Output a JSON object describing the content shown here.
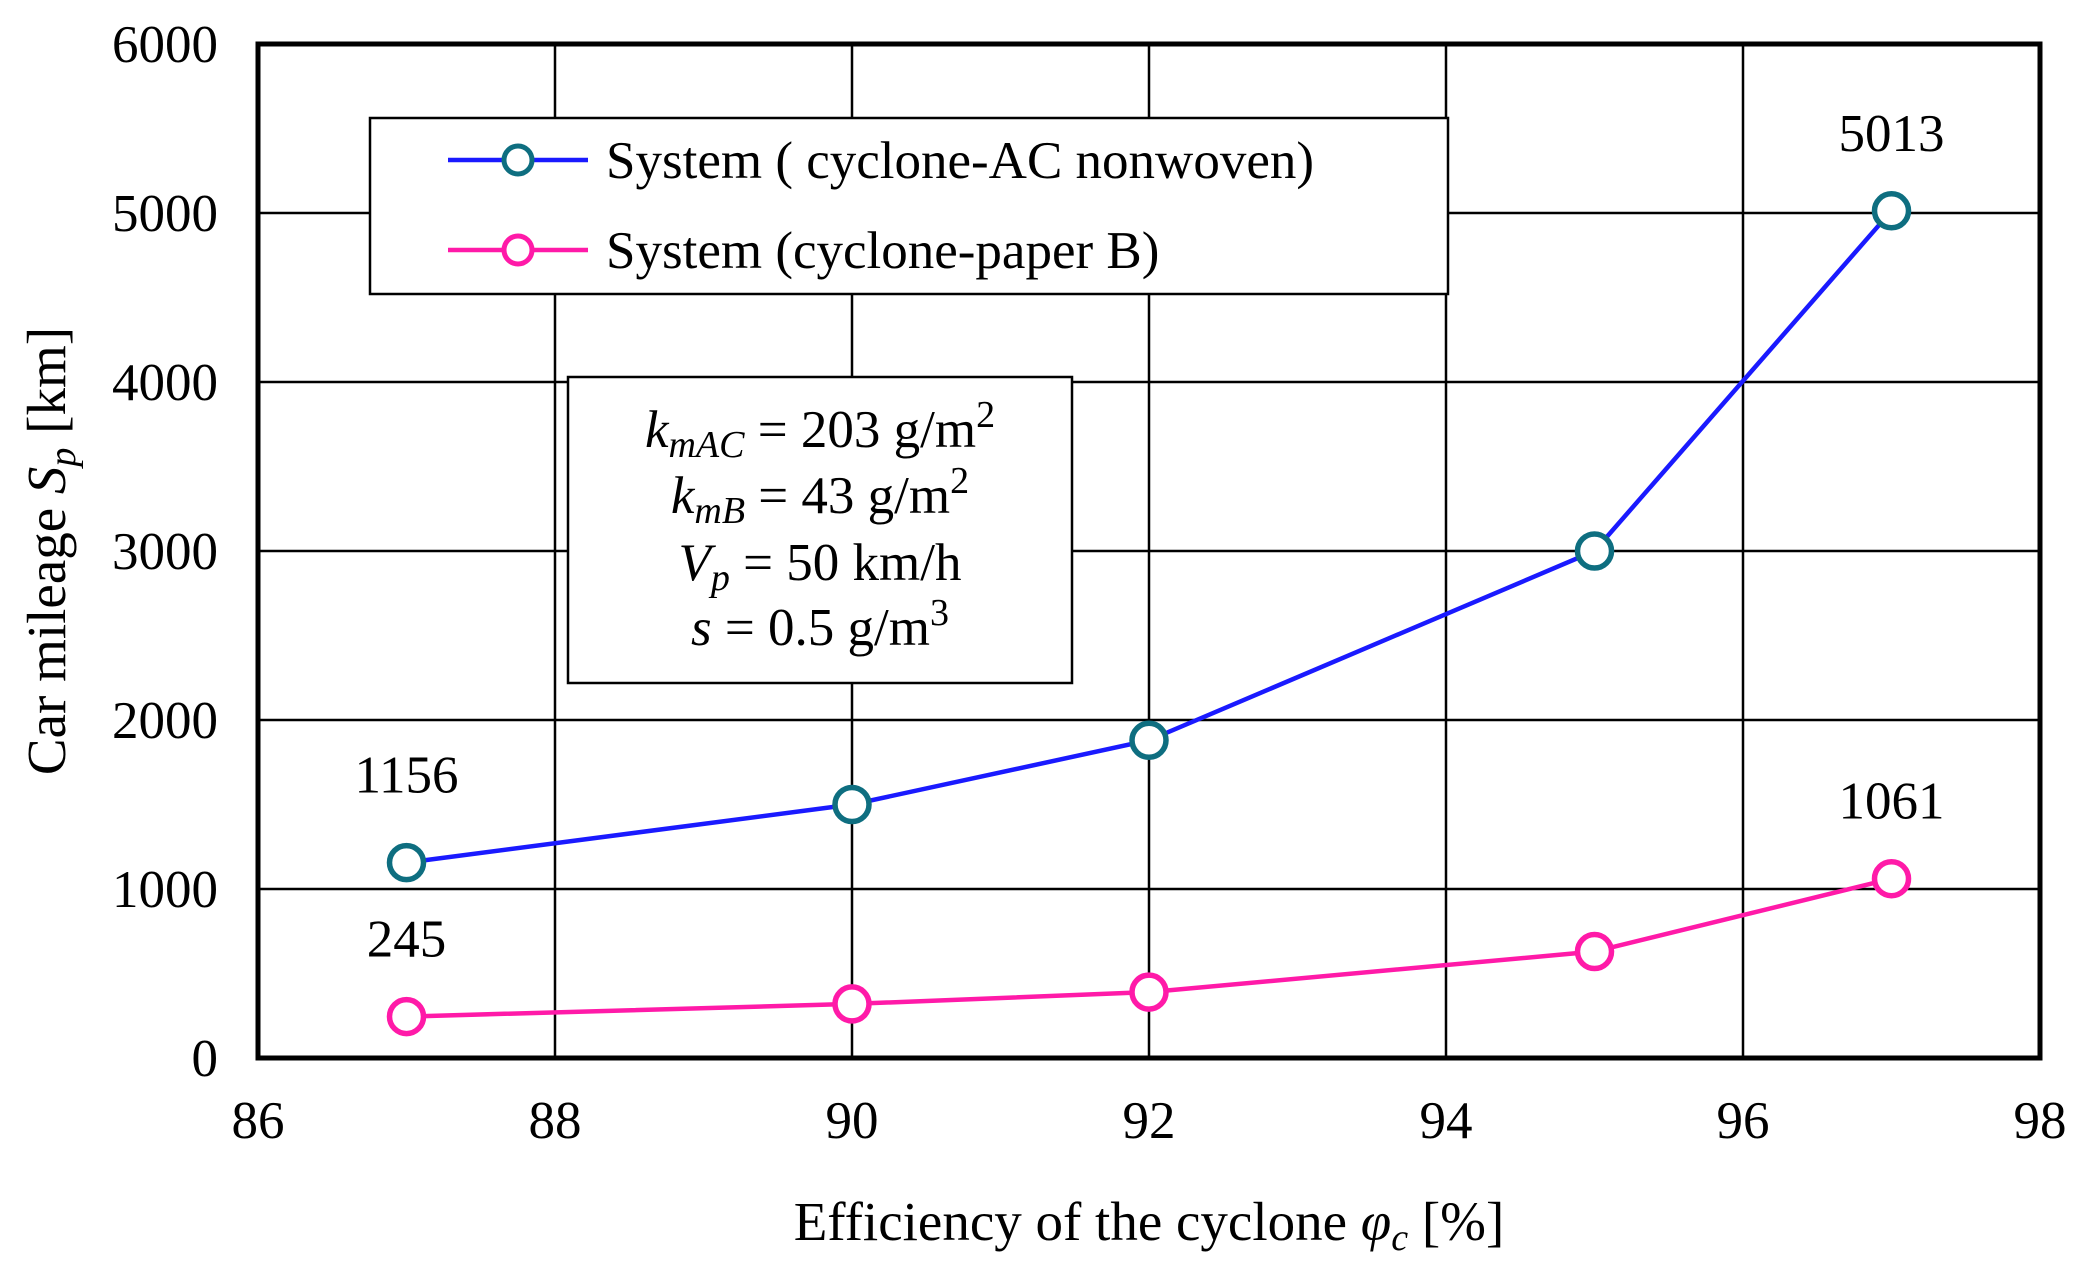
{
  "chart_data": {
    "type": "line",
    "xlabel": {
      "main": "Efficiency of the cyclone ",
      "sym": "φ",
      "sub": "c",
      "unit": " [%]"
    },
    "ylabel": {
      "main": "Car mileage ",
      "sym": "S",
      "sub": "p",
      "unit": " [km]"
    },
    "xlim": [
      86,
      98
    ],
    "ylim": [
      0,
      6000
    ],
    "xticks": [
      "86",
      "88",
      "90",
      "92",
      "94",
      "96",
      "98"
    ],
    "yticks": [
      "0",
      "1000",
      "2000",
      "3000",
      "4000",
      "5000",
      "6000"
    ],
    "grid": true,
    "legend_position": "top-left",
    "series": [
      {
        "name": "System ( cyclone-AC nonwoven)",
        "color": "#1a1aff",
        "marker_color": "#0e6e80",
        "x": [
          87,
          90,
          92,
          95,
          97
        ],
        "values": [
          1156,
          1500,
          1880,
          3000,
          5013
        ]
      },
      {
        "name": "System (cyclone-paper B)",
        "color": "#ff1aa8",
        "marker_color": "#ff1aa8",
        "x": [
          87,
          90,
          92,
          95,
          97
        ],
        "values": [
          245,
          320,
          390,
          630,
          1061
        ]
      }
    ],
    "annotations": [
      {
        "text": "1156",
        "x": 87,
        "y": 1156,
        "placement": "above-left"
      },
      {
        "text": "5013",
        "x": 97,
        "y": 5013,
        "placement": "above"
      },
      {
        "text": "1061",
        "x": 97,
        "y": 1061,
        "placement": "above"
      },
      {
        "text": "245",
        "x": 87,
        "y": 245,
        "placement": "above"
      }
    ],
    "parameters_box": [
      {
        "sym": "k",
        "sub": "mAC",
        "rest": " = 203 g/m",
        "sup": "2"
      },
      {
        "sym": "k",
        "sub": "mB",
        "rest": " = 43 g/m",
        "sup": "2"
      },
      {
        "sym": "V",
        "sub": "p",
        "rest": " = 50 km/h",
        "sup": ""
      },
      {
        "sym": "s",
        "sub": "",
        "rest": " = 0.5 g/m",
        "sup": "3"
      }
    ]
  }
}
